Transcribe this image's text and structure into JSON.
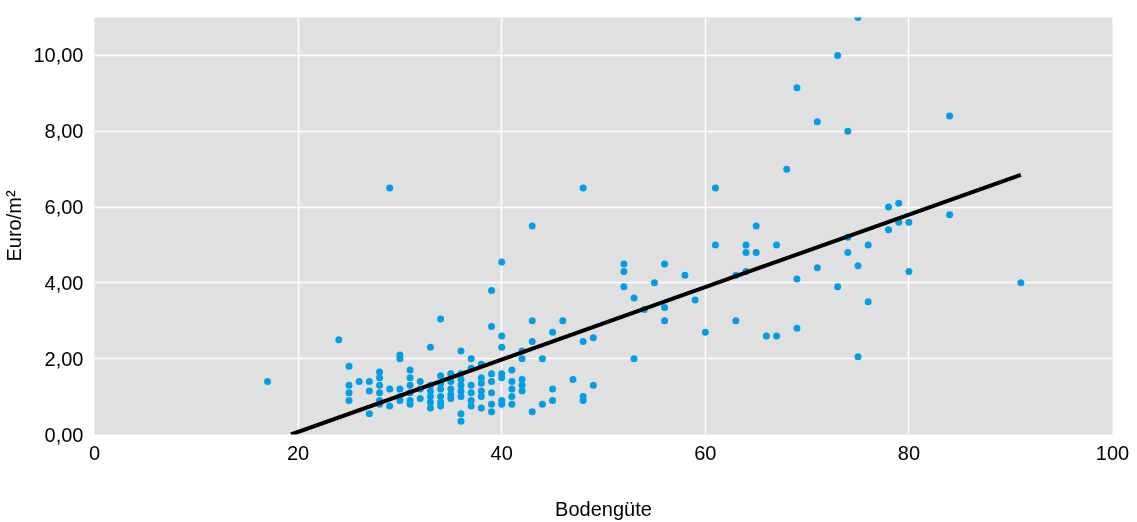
{
  "chart_data": {
    "type": "scatter",
    "xlabel": "Bodengüte",
    "ylabel": "Euro/m²",
    "xlim": [
      0,
      100
    ],
    "ylim": [
      0,
      11
    ],
    "xticks": [
      0,
      20,
      40,
      60,
      80,
      100
    ],
    "yticks": [
      {
        "value": 0,
        "label": "0,00"
      },
      {
        "value": 2,
        "label": "2,00"
      },
      {
        "value": 4,
        "label": "4,00"
      },
      {
        "value": 6,
        "label": "6,00"
      },
      {
        "value": 8,
        "label": "8,00"
      },
      {
        "value": 10,
        "label": "10,00"
      }
    ],
    "grid": true,
    "series": [
      {
        "marker": "circle",
        "color": "#009fe3",
        "x": [
          17,
          24,
          29,
          34,
          40,
          39,
          43,
          48,
          39,
          46,
          45,
          43,
          47,
          48,
          48,
          49,
          49,
          48,
          44,
          45,
          45,
          43,
          44,
          52,
          52,
          52,
          53,
          53,
          54,
          55,
          56,
          56,
          56,
          58,
          59,
          60,
          61,
          61,
          63,
          63,
          64,
          64,
          64,
          65,
          65,
          66,
          67,
          67,
          68,
          69,
          69,
          69,
          71,
          71,
          73,
          73,
          74,
          74,
          74,
          75,
          75,
          75,
          76,
          76,
          78,
          78,
          79,
          79,
          80,
          80,
          84,
          84,
          91,
          25,
          25,
          25,
          25,
          26,
          27,
          27,
          27,
          28,
          28,
          28,
          28,
          28,
          28,
          29,
          29,
          30,
          30,
          30,
          30,
          30,
          31,
          31,
          31,
          31,
          31,
          31,
          32,
          32,
          32,
          33,
          33,
          33,
          33,
          33,
          33,
          34,
          34,
          34,
          34,
          34,
          34,
          35,
          35,
          35,
          35,
          35,
          36,
          36,
          36,
          36,
          36,
          36,
          36,
          36,
          37,
          37,
          37,
          37,
          37,
          37,
          38,
          38,
          38,
          38,
          38,
          38,
          39,
          39,
          39,
          39,
          39,
          40,
          40,
          40,
          40,
          40,
          40,
          41,
          41,
          41,
          41,
          41,
          42,
          42,
          42,
          42,
          42,
          43
        ],
        "values": [
          1.4,
          2.5,
          6.5,
          3.05,
          4.55,
          3.8,
          5.5,
          6.5,
          2.85,
          3.0,
          2.7,
          3.0,
          1.45,
          0.9,
          1.0,
          1.3,
          2.55,
          2.45,
          0.8,
          1.2,
          0.9,
          0.6,
          2.0,
          4.5,
          4.3,
          3.9,
          3.6,
          2.0,
          3.3,
          4.0,
          4.5,
          3.35,
          3.0,
          4.2,
          3.55,
          2.7,
          6.5,
          5.0,
          4.2,
          3.0,
          5.0,
          4.8,
          4.3,
          5.5,
          4.8,
          2.6,
          5.0,
          2.6,
          7.0,
          9.15,
          4.1,
          2.8,
          8.25,
          4.4,
          10.0,
          3.9,
          8.0,
          5.2,
          4.8,
          11.0,
          4.45,
          2.05,
          5.0,
          3.5,
          6.0,
          5.4,
          6.1,
          5.6,
          5.6,
          4.3,
          8.4,
          5.8,
          4.0,
          1.8,
          1.3,
          1.1,
          0.9,
          1.4,
          1.4,
          1.15,
          0.55,
          1.65,
          1.5,
          1.3,
          1.1,
          0.9,
          0.8,
          1.2,
          0.75,
          2.1,
          2.0,
          1.2,
          1.0,
          0.9,
          1.7,
          1.5,
          1.3,
          1.1,
          0.9,
          0.8,
          1.4,
          1.2,
          0.95,
          2.3,
          1.3,
          1.15,
          1.0,
          0.85,
          0.7,
          1.55,
          1.35,
          1.2,
          1.0,
          0.85,
          0.75,
          1.6,
          1.4,
          1.2,
          1.05,
          0.95,
          2.2,
          1.6,
          1.45,
          1.3,
          1.15,
          1.0,
          0.55,
          0.35,
          2.0,
          1.75,
          1.3,
          1.1,
          0.9,
          0.75,
          1.85,
          1.5,
          1.35,
          1.15,
          1.0,
          0.7,
          1.6,
          1.4,
          1.1,
          0.8,
          0.6,
          2.6,
          2.3,
          1.6,
          1.5,
          0.9,
          0.8,
          1.7,
          1.4,
          1.2,
          1.0,
          0.8,
          2.2,
          2.0,
          1.45,
          1.3,
          1.15,
          2.45
        ]
      },
      {
        "type": "line",
        "color": "#000000",
        "x": [
          19.3,
          91
        ],
        "values": [
          0,
          6.85
        ]
      }
    ]
  }
}
